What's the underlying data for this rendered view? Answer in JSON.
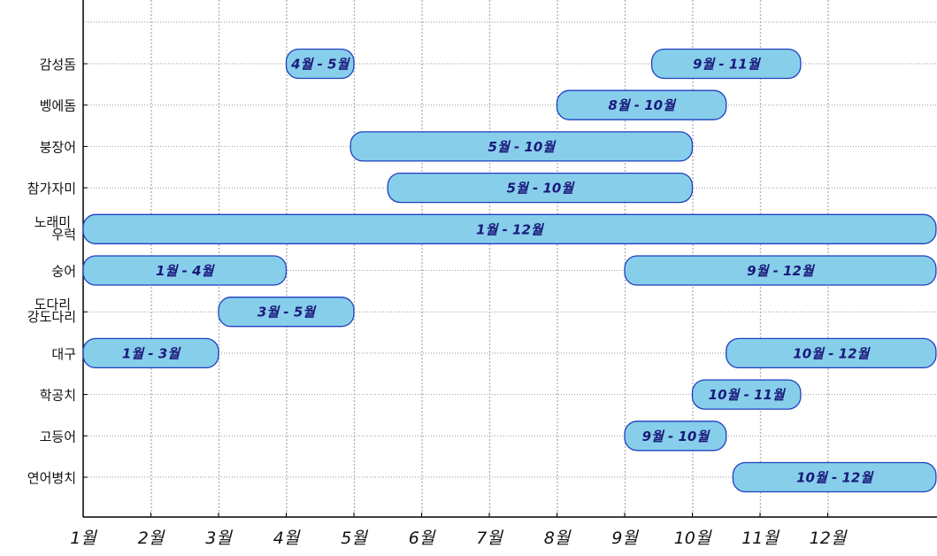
{
  "chart_data": {
    "type": "bar",
    "orientation": "horizontal-range",
    "title": "",
    "xlabel": "",
    "ylabel": "",
    "x_ticks": [
      "1월",
      "2월",
      "3월",
      "4월",
      "5월",
      "6월",
      "7월",
      "8월",
      "9월",
      "10월",
      "11월",
      "12월"
    ],
    "xlim": [
      1,
      13.6
    ],
    "grid": true,
    "categories": [
      {
        "label": [
          "감성돔"
        ]
      },
      {
        "label": [
          "벵에돔"
        ]
      },
      {
        "label": [
          "붕장어"
        ]
      },
      {
        "label": [
          "참가자미"
        ]
      },
      {
        "label": [
          "노래미",
          "우럭"
        ]
      },
      {
        "label": [
          "숭어"
        ]
      },
      {
        "label": [
          "도다리",
          "강도다리"
        ]
      },
      {
        "label": [
          "대구"
        ]
      },
      {
        "label": [
          "학공치"
        ]
      },
      {
        "label": [
          "고등어"
        ]
      },
      {
        "label": [
          "연어병치"
        ]
      }
    ],
    "bars": [
      {
        "category": 0,
        "start": 4.0,
        "end": 5.0,
        "label": "4월 - 5월"
      },
      {
        "category": 0,
        "start": 9.4,
        "end": 11.6,
        "label": "9월 - 11월"
      },
      {
        "category": 1,
        "start": 8.0,
        "end": 10.5,
        "label": "8월 - 10월"
      },
      {
        "category": 2,
        "start": 4.95,
        "end": 10.0,
        "label": "5월 - 10월"
      },
      {
        "category": 3,
        "start": 5.5,
        "end": 10.0,
        "label": "5월 - 10월"
      },
      {
        "category": 4,
        "start": 1.0,
        "end": 13.6,
        "label": "1월 - 12월"
      },
      {
        "category": 5,
        "start": 1.0,
        "end": 4.0,
        "label": "1월 - 4월"
      },
      {
        "category": 5,
        "start": 9.0,
        "end": 13.6,
        "label": "9월 - 12월"
      },
      {
        "category": 6,
        "start": 3.0,
        "end": 5.0,
        "label": "3월 - 5월"
      },
      {
        "category": 7,
        "start": 1.0,
        "end": 3.0,
        "label": "1월 - 3월"
      },
      {
        "category": 7,
        "start": 10.5,
        "end": 13.6,
        "label": "10월 - 12월"
      },
      {
        "category": 8,
        "start": 10.0,
        "end": 11.6,
        "label": "10월 - 11월"
      },
      {
        "category": 9,
        "start": 9.0,
        "end": 10.5,
        "label": "9월 - 10월"
      },
      {
        "category": 10,
        "start": 10.6,
        "end": 13.6,
        "label": "10월 - 12월"
      }
    ],
    "colors": {
      "bar_fill": "#87ceeb",
      "bar_stroke": "#1f3fbf",
      "bar_text": "#1a1a7a"
    }
  }
}
